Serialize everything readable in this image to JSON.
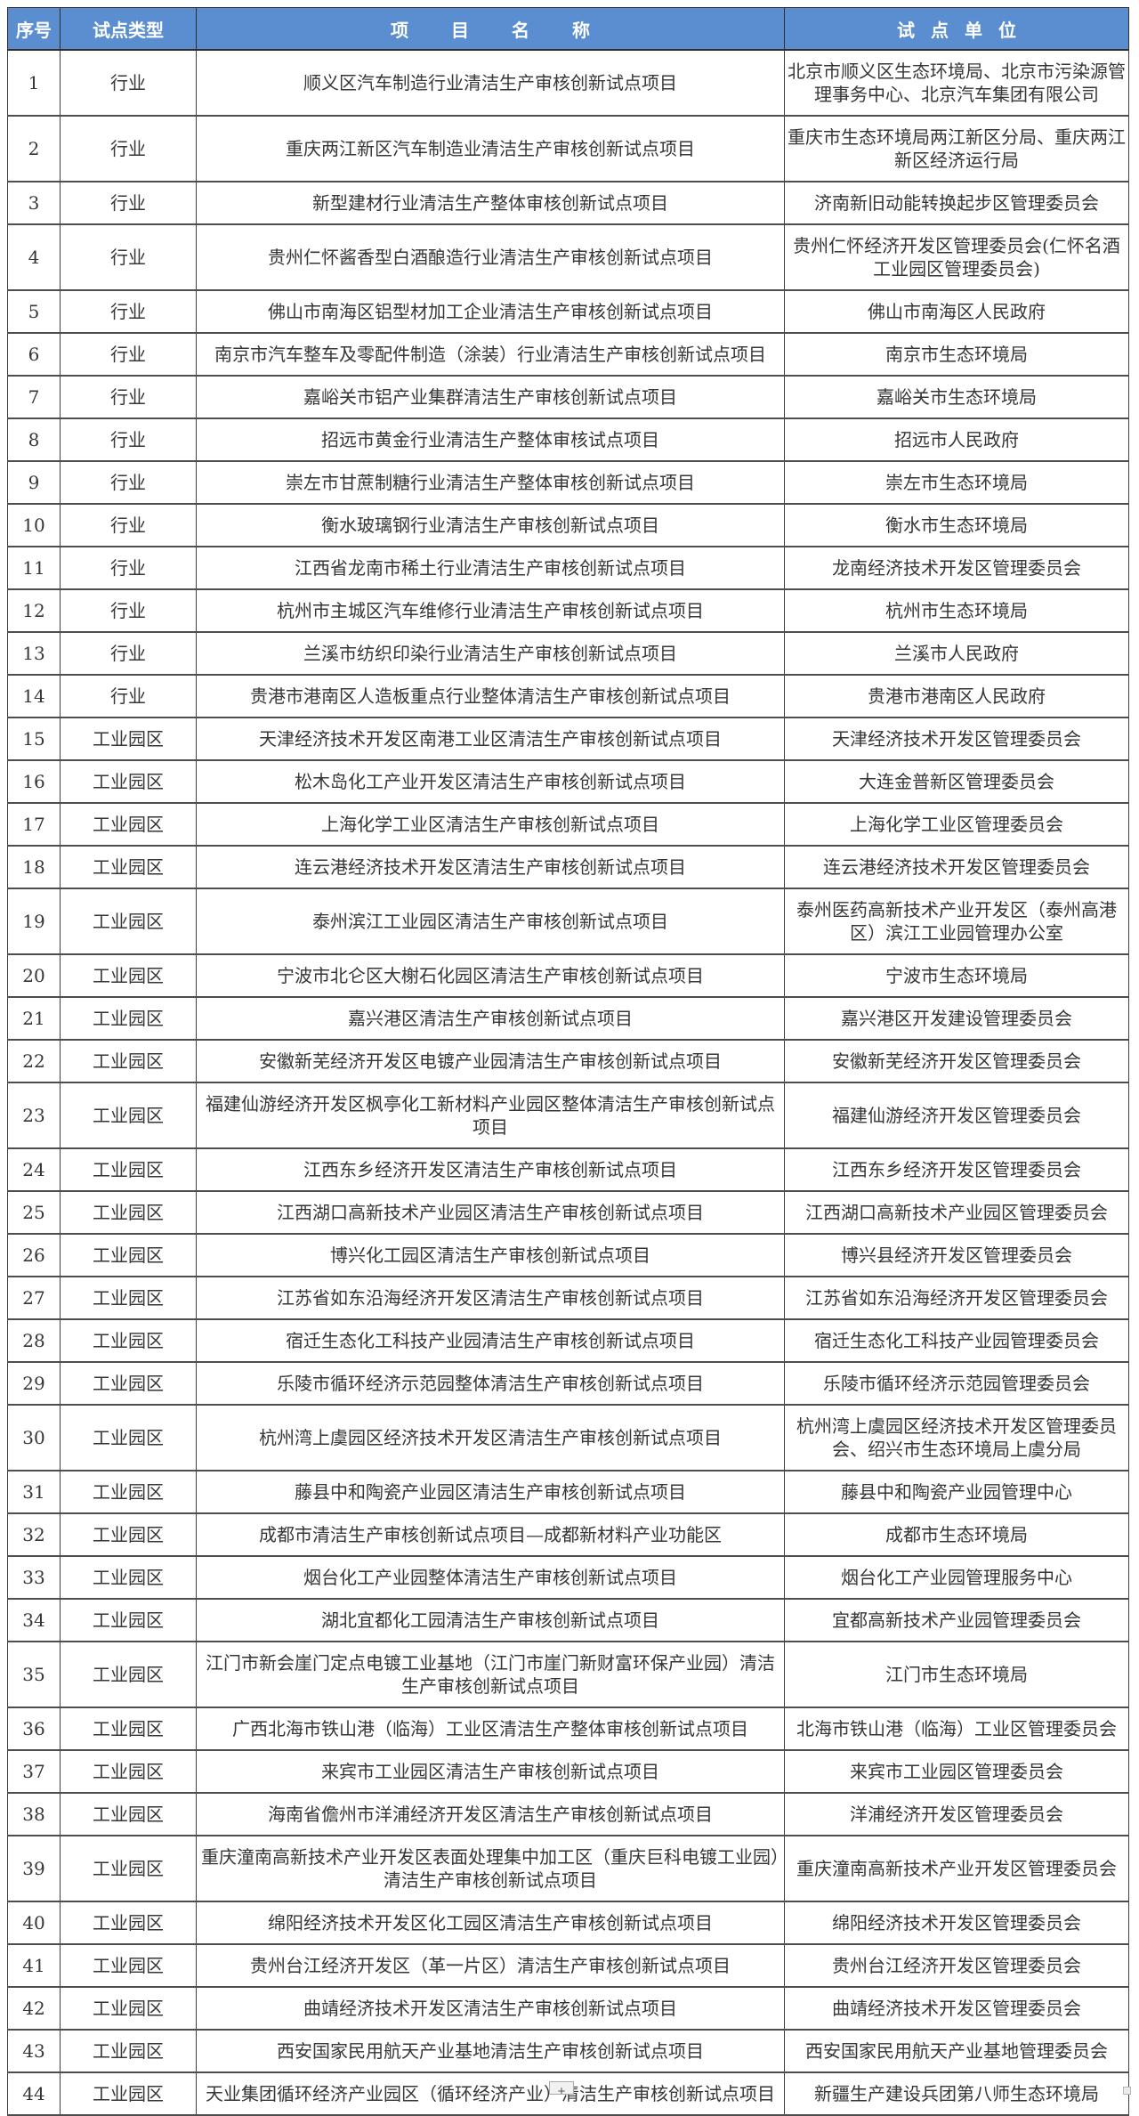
{
  "header": {
    "col_no": "序号",
    "col_type": "试点类型",
    "col_name": "项目名称",
    "col_unit": "试点单位"
  },
  "colors": {
    "header_bg": "#5a8ed0",
    "header_text": "#ffffff",
    "row_border": "#4d4d4d",
    "body_text": "#363636"
  },
  "footer": {
    "plus_label": "+"
  },
  "rows": [
    {
      "no": "1",
      "type": "行业",
      "name": "顺义区汽车制造行业清洁生产审核创新试点项目",
      "unit": "北京市顺义区生态环境局、北京市污染源管理事务中心、北京汽车集团有限公司"
    },
    {
      "no": "2",
      "type": "行业",
      "name": "重庆两江新区汽车制造业清洁生产审核创新试点项目",
      "unit": "重庆市生态环境局两江新区分局、重庆两江新区经济运行局"
    },
    {
      "no": "3",
      "type": "行业",
      "name": "新型建材行业清洁生产整体审核创新试点项目",
      "unit": "济南新旧动能转换起步区管理委员会"
    },
    {
      "no": "4",
      "type": "行业",
      "name": "贵州仁怀酱香型白酒酿造行业清洁生产审核创新试点项目",
      "unit": "贵州仁怀经济开发区管理委员会(仁怀名酒工业园区管理委员会)"
    },
    {
      "no": "5",
      "type": "行业",
      "name": "佛山市南海区铝型材加工企业清洁生产审核创新试点项目",
      "unit": "佛山市南海区人民政府"
    },
    {
      "no": "6",
      "type": "行业",
      "name": "南京市汽车整车及零配件制造（涂装）行业清洁生产审核创新试点项目",
      "unit": "南京市生态环境局"
    },
    {
      "no": "7",
      "type": "行业",
      "name": "嘉峪关市铝产业集群清洁生产审核创新试点项目",
      "unit": "嘉峪关市生态环境局"
    },
    {
      "no": "8",
      "type": "行业",
      "name": "招远市黄金行业清洁生产整体审核试点项目",
      "unit": "招远市人民政府"
    },
    {
      "no": "9",
      "type": "行业",
      "name": "崇左市甘蔗制糖行业清洁生产整体审核创新试点项目",
      "unit": "崇左市生态环境局"
    },
    {
      "no": "10",
      "type": "行业",
      "name": "衡水玻璃钢行业清洁生产审核创新试点项目",
      "unit": "衡水市生态环境局"
    },
    {
      "no": "11",
      "type": "行业",
      "name": "江西省龙南市稀土行业清洁生产审核创新试点项目",
      "unit": "龙南经济技术开发区管理委员会"
    },
    {
      "no": "12",
      "type": "行业",
      "name": "杭州市主城区汽车维修行业清洁生产审核创新试点项目",
      "unit": "杭州市生态环境局"
    },
    {
      "no": "13",
      "type": "行业",
      "name": "兰溪市纺织印染行业清洁生产审核创新试点项目",
      "unit": "兰溪市人民政府"
    },
    {
      "no": "14",
      "type": "行业",
      "name": "贵港市港南区人造板重点行业整体清洁生产审核创新试点项目",
      "unit": "贵港市港南区人民政府"
    },
    {
      "no": "15",
      "type": "工业园区",
      "name": "天津经济技术开发区南港工业区清洁生产审核创新试点项目",
      "unit": "天津经济技术开发区管理委员会"
    },
    {
      "no": "16",
      "type": "工业园区",
      "name": "松木岛化工产业开发区清洁生产审核创新试点项目",
      "unit": "大连金普新区管理委员会"
    },
    {
      "no": "17",
      "type": "工业园区",
      "name": "上海化学工业区清洁生产审核创新试点项目",
      "unit": "上海化学工业区管理委员会"
    },
    {
      "no": "18",
      "type": "工业园区",
      "name": "连云港经济技术开发区清洁生产审核创新试点项目",
      "unit": "连云港经济技术开发区管理委员会"
    },
    {
      "no": "19",
      "type": "工业园区",
      "name": "泰州滨江工业园区清洁生产审核创新试点项目",
      "unit": "泰州医药高新技术产业开发区（泰州高港区）滨江工业园管理办公室"
    },
    {
      "no": "20",
      "type": "工业园区",
      "name": "宁波市北仑区大榭石化园区清洁生产审核创新试点项目",
      "unit": "宁波市生态环境局"
    },
    {
      "no": "21",
      "type": "工业园区",
      "name": "嘉兴港区清洁生产审核创新试点项目",
      "unit": "嘉兴港区开发建设管理委员会"
    },
    {
      "no": "22",
      "type": "工业园区",
      "name": "安徽新芜经济开发区电镀产业园清洁生产审核创新试点项目",
      "unit": "安徽新芜经济开发区管理委员会"
    },
    {
      "no": "23",
      "type": "工业园区",
      "name": "福建仙游经济开发区枫亭化工新材料产业园区整体清洁生产审核创新试点项目",
      "unit": "福建仙游经济开发区管理委员会"
    },
    {
      "no": "24",
      "type": "工业园区",
      "name": "江西东乡经济开发区清洁生产审核创新试点项目",
      "unit": "江西东乡经济开发区管理委员会"
    },
    {
      "no": "25",
      "type": "工业园区",
      "name": "江西湖口高新技术产业园区清洁生产审核创新试点项目",
      "unit": "江西湖口高新技术产业园区管理委员会"
    },
    {
      "no": "26",
      "type": "工业园区",
      "name": "博兴化工园区清洁生产审核创新试点项目",
      "unit": "博兴县经济开发区管理委员会"
    },
    {
      "no": "27",
      "type": "工业园区",
      "name": "江苏省如东沿海经济开发区清洁生产审核创新试点项目",
      "unit": "江苏省如东沿海经济开发区管理委员会"
    },
    {
      "no": "28",
      "type": "工业园区",
      "name": "宿迁生态化工科技产业园清洁生产审核创新试点项目",
      "unit": "宿迁生态化工科技产业园管理委员会"
    },
    {
      "no": "29",
      "type": "工业园区",
      "name": "乐陵市循环经济示范园整体清洁生产审核创新试点项目",
      "unit": "乐陵市循环经济示范园管理委员会"
    },
    {
      "no": "30",
      "type": "工业园区",
      "name": "杭州湾上虞园区经济技术开发区清洁生产审核创新试点项目",
      "unit": "杭州湾上虞园区经济技术开发区管理委员会、绍兴市生态环境局上虞分局"
    },
    {
      "no": "31",
      "type": "工业园区",
      "name": "藤县中和陶瓷产业园区清洁生产审核创新试点项目",
      "unit": "藤县中和陶瓷产业园管理中心"
    },
    {
      "no": "32",
      "type": "工业园区",
      "name": "成都市清洁生产审核创新试点项目—成都新材料产业功能区",
      "unit": "成都市生态环境局"
    },
    {
      "no": "33",
      "type": "工业园区",
      "name": "烟台化工产业园整体清洁生产审核创新试点项目",
      "unit": "烟台化工产业园管理服务中心"
    },
    {
      "no": "34",
      "type": "工业园区",
      "name": "湖北宜都化工园清洁生产审核创新试点项目",
      "unit": "宜都高新技术产业园管理委员会"
    },
    {
      "no": "35",
      "type": "工业园区",
      "name": "江门市新会崖门定点电镀工业基地（江门市崖门新财富环保产业园）清洁生产审核创新试点项目",
      "unit": "江门市生态环境局"
    },
    {
      "no": "36",
      "type": "工业园区",
      "name": "广西北海市铁山港（临海）工业区清洁生产整体审核创新试点项目",
      "unit": "北海市铁山港（临海）工业区管理委员会"
    },
    {
      "no": "37",
      "type": "工业园区",
      "name": "来宾市工业园区清洁生产审核创新试点项目",
      "unit": "来宾市工业园区管理委员会"
    },
    {
      "no": "38",
      "type": "工业园区",
      "name": "海南省儋州市洋浦经济开发区清洁生产审核创新试点项目",
      "unit": "洋浦经济开发区管理委员会"
    },
    {
      "no": "39",
      "type": "工业园区",
      "name": "重庆潼南高新技术产业开发区表面处理集中加工区（重庆巨科电镀工业园）清洁生产审核创新试点项目",
      "unit": "重庆潼南高新技术产业开发区管理委员会"
    },
    {
      "no": "40",
      "type": "工业园区",
      "name": "绵阳经济技术开发区化工园区清洁生产审核创新试点项目",
      "unit": "绵阳经济技术开发区管理委员会"
    },
    {
      "no": "41",
      "type": "工业园区",
      "name": "贵州台江经济开发区（革一片区）清洁生产审核创新试点项目",
      "unit": "贵州台江经济开发区管理委员会"
    },
    {
      "no": "42",
      "type": "工业园区",
      "name": "曲靖经济技术开发区清洁生产审核创新试点项目",
      "unit": "曲靖经济技术开发区管理委员会"
    },
    {
      "no": "43",
      "type": "工业园区",
      "name": "西安国家民用航天产业基地清洁生产审核创新试点项目",
      "unit": "西安国家民用航天产业基地管理委员会"
    },
    {
      "no": "44",
      "type": "工业园区",
      "name": "天业集团循环经济产业园区（循环经济产业）清洁生产审核创新试点项目",
      "unit": "新疆生产建设兵团第八师生态环境局"
    }
  ]
}
